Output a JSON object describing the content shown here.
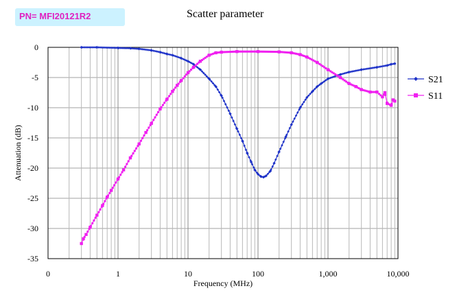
{
  "part_number": "PN= MFI20121R2",
  "chart_data": {
    "type": "scatter",
    "title": "Scatter parameter",
    "xlabel": "Frequency (MHz)",
    "ylabel": "Attenuation (dB)",
    "x_scale": "log",
    "xlim": [
      0.1,
      10000
    ],
    "ylim": [
      -35,
      0
    ],
    "x_ticks": [
      {
        "value": 0.1,
        "label": "0"
      },
      {
        "value": 1,
        "label": "1"
      },
      {
        "value": 10,
        "label": "10"
      },
      {
        "value": 100,
        "label": "100"
      },
      {
        "value": 1000,
        "label": "1,000"
      },
      {
        "value": 10000,
        "label": "10,000"
      }
    ],
    "y_ticks": [
      0,
      -5,
      -10,
      -15,
      -20,
      -25,
      -30,
      -35
    ],
    "grid": {
      "x_minor": true,
      "y_major": true
    },
    "legend": "right",
    "series": [
      {
        "name": "S21",
        "color": "#1e32c8",
        "marker": "diamond",
        "points": [
          [
            0.3,
            0
          ],
          [
            0.5,
            0
          ],
          [
            1,
            -0.1
          ],
          [
            1.5,
            -0.15
          ],
          [
            2,
            -0.25
          ],
          [
            3,
            -0.5
          ],
          [
            4,
            -0.8
          ],
          [
            5,
            -1.1
          ],
          [
            6,
            -1.3
          ],
          [
            8,
            -1.8
          ],
          [
            10,
            -2.3
          ],
          [
            12,
            -2.8
          ],
          [
            15,
            -3.7
          ],
          [
            20,
            -5.2
          ],
          [
            25,
            -6.5
          ],
          [
            30,
            -8
          ],
          [
            40,
            -11
          ],
          [
            50,
            -13.5
          ],
          [
            60,
            -15.5
          ],
          [
            70,
            -17.5
          ],
          [
            80,
            -19
          ],
          [
            90,
            -20.3
          ],
          [
            100,
            -21
          ],
          [
            110,
            -21.4
          ],
          [
            120,
            -21.5
          ],
          [
            130,
            -21.3
          ],
          [
            150,
            -20.5
          ],
          [
            170,
            -19.2
          ],
          [
            200,
            -17.3
          ],
          [
            250,
            -14.8
          ],
          [
            300,
            -12.8
          ],
          [
            400,
            -10
          ],
          [
            500,
            -8.3
          ],
          [
            600,
            -7.3
          ],
          [
            700,
            -6.5
          ],
          [
            800,
            -6
          ],
          [
            1000,
            -5.2
          ],
          [
            1500,
            -4.5
          ],
          [
            2000,
            -4.1
          ],
          [
            3000,
            -3.7
          ],
          [
            5000,
            -3.3
          ],
          [
            7000,
            -3
          ],
          [
            8000,
            -2.8
          ],
          [
            9000,
            -2.7
          ]
        ]
      },
      {
        "name": "S11",
        "color": "#f020f0",
        "marker": "square",
        "points": [
          [
            0.3,
            -32.5
          ],
          [
            0.32,
            -31.7
          ],
          [
            0.35,
            -31
          ],
          [
            0.4,
            -29.8
          ],
          [
            0.5,
            -27.8
          ],
          [
            0.6,
            -26.2
          ],
          [
            0.7,
            -24.8
          ],
          [
            0.8,
            -23.7
          ],
          [
            1,
            -21.8
          ],
          [
            1.2,
            -20.3
          ],
          [
            1.5,
            -18.3
          ],
          [
            2,
            -16
          ],
          [
            2.5,
            -14.1
          ],
          [
            3,
            -12.6
          ],
          [
            4,
            -10.2
          ],
          [
            5,
            -8.6
          ],
          [
            6,
            -7.3
          ],
          [
            7,
            -6.3
          ],
          [
            8,
            -5.5
          ],
          [
            10,
            -4.2
          ],
          [
            12,
            -3.3
          ],
          [
            15,
            -2.3
          ],
          [
            20,
            -1.3
          ],
          [
            25,
            -0.9
          ],
          [
            30,
            -0.8
          ],
          [
            50,
            -0.7
          ],
          [
            100,
            -0.7
          ],
          [
            200,
            -0.75
          ],
          [
            300,
            -0.9
          ],
          [
            400,
            -1.2
          ],
          [
            500,
            -1.6
          ],
          [
            700,
            -2.5
          ],
          [
            1000,
            -3.7
          ],
          [
            1500,
            -5
          ],
          [
            2000,
            -6
          ],
          [
            2500,
            -6.5
          ],
          [
            3000,
            -7
          ],
          [
            4000,
            -7.4
          ],
          [
            5000,
            -7.4
          ],
          [
            6000,
            -8.2
          ],
          [
            6500,
            -7.5
          ],
          [
            7000,
            -9.3
          ],
          [
            8000,
            -9.6
          ],
          [
            8500,
            -8.7
          ],
          [
            9000,
            -8.9
          ]
        ]
      }
    ]
  }
}
